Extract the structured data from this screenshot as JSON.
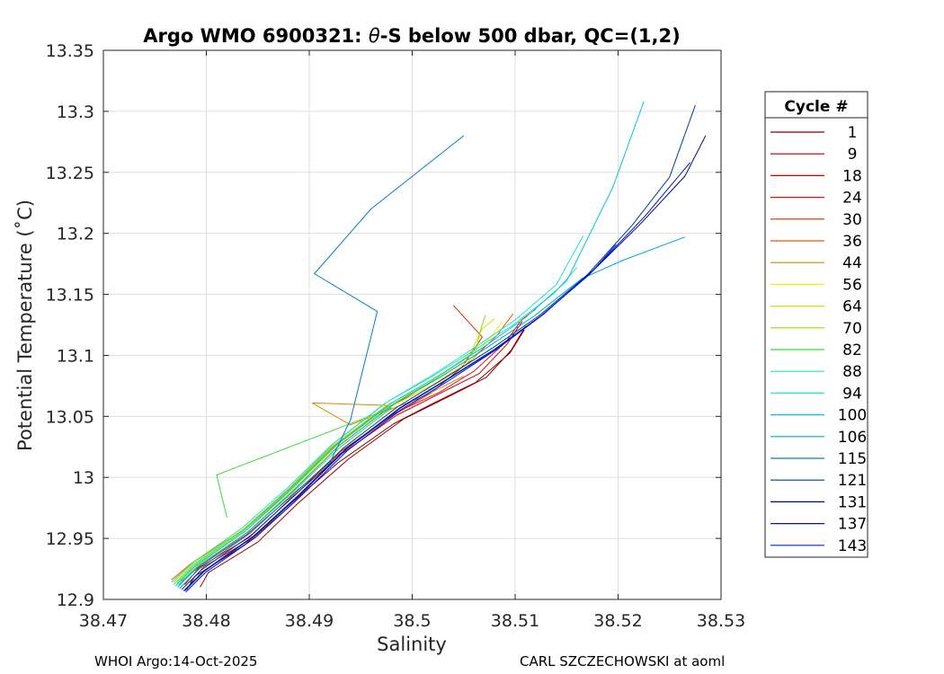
{
  "chart_data": {
    "type": "line",
    "title": "Argo WMO 6900321: θ-S below 500 dbar,  QC=(1,2)",
    "title_prefix": "Argo WMO 6900321: ",
    "title_theta": "θ",
    "title_suffix": "-S below 500 dbar,  QC=(1,2)",
    "xlabel": "Salinity",
    "ylabel": "Potential Temperature (˚C)",
    "xlim": [
      38.47,
      38.53
    ],
    "ylim": [
      12.9,
      13.35
    ],
    "xticks": [
      "38.47",
      "38.48",
      "38.49",
      "38.5",
      "38.51",
      "38.52",
      "38.53"
    ],
    "yticks": [
      "12.9",
      "12.95",
      "13",
      "13.05",
      "13.1",
      "13.15",
      "13.2",
      "13.25",
      "13.3",
      "13.35"
    ],
    "grid": true,
    "legend": {
      "title": "Cycle #",
      "placement": "right",
      "entries": [
        "1",
        "9",
        "18",
        "24",
        "30",
        "36",
        "44",
        "56",
        "64",
        "70",
        "82",
        "88",
        "94",
        "100",
        "106",
        "115",
        "121",
        "131",
        "137",
        "143"
      ]
    },
    "colors": [
      "#800000",
      "#9a0000",
      "#cc0000",
      "#d81818",
      "#e02a00",
      "#ee5500",
      "#d08c00",
      "#ffee00",
      "#c8e800",
      "#8ee000",
      "#3ed83e",
      "#2ee6a0",
      "#22e0d6",
      "#00c4f0",
      "#00a8cc",
      "#0080c0",
      "#003c96",
      "#000c80",
      "#0010d0",
      "#0028c8"
    ],
    "series": [
      {
        "name": "1",
        "x": [
          38.4781,
          38.4789,
          38.4838,
          38.4877,
          38.4928,
          38.4982,
          38.5021,
          38.5062,
          38.5095,
          38.5109
        ],
        "y": [
          12.908,
          12.919,
          12.945,
          12.975,
          13.012,
          13.044,
          13.061,
          13.078,
          13.102,
          13.121
        ]
      },
      {
        "name": "9",
        "x": [
          38.4794,
          38.4802,
          38.485,
          38.4888,
          38.4938,
          38.4992,
          38.5035,
          38.5072,
          38.5096,
          38.511
        ],
        "y": [
          12.91,
          12.922,
          12.947,
          12.978,
          13.015,
          13.048,
          13.066,
          13.082,
          13.104,
          13.124
        ]
      },
      {
        "name": "18",
        "x": [
          38.4779,
          38.4793,
          38.4842,
          38.4881,
          38.4931,
          38.4985,
          38.5025,
          38.5065,
          38.5092,
          38.5107
        ],
        "y": [
          12.912,
          12.926,
          12.951,
          12.982,
          13.019,
          13.051,
          13.068,
          13.085,
          13.109,
          13.128
        ]
      },
      {
        "name": "24",
        "x": [
          38.4776,
          38.4795,
          38.4839,
          38.4882,
          38.493,
          38.4984,
          38.5027,
          38.506,
          38.5091,
          38.5106,
          38.512
        ],
        "y": [
          12.915,
          12.928,
          12.953,
          12.984,
          13.021,
          13.053,
          13.07,
          13.087,
          13.111,
          13.129,
          13.138
        ]
      },
      {
        "name": "30",
        "x": [
          38.4784,
          38.4798,
          38.4845,
          38.4886,
          38.4926,
          38.4976,
          38.5018,
          38.5048,
          38.5068,
          38.504
        ],
        "y": [
          12.914,
          12.927,
          12.95,
          12.98,
          13.017,
          13.048,
          13.069,
          13.09,
          13.115,
          13.141
        ]
      },
      {
        "name": "36",
        "x": [
          38.4766,
          38.4786,
          38.4835,
          38.4878,
          38.4922,
          38.4972,
          38.5014,
          38.5052,
          38.5082,
          38.5098
        ],
        "y": [
          12.916,
          12.93,
          12.956,
          12.987,
          13.024,
          13.056,
          13.073,
          13.092,
          13.116,
          13.134
        ]
      },
      {
        "name": "44",
        "x": [
          38.477,
          38.4788,
          38.4837,
          38.4879,
          38.4924,
          38.4976,
          38.4903,
          38.494,
          38.501,
          38.505
        ],
        "y": [
          12.917,
          12.931,
          12.958,
          12.989,
          13.026,
          13.059,
          13.061,
          13.043,
          13.066,
          13.083
        ]
      },
      {
        "name": "56",
        "x": [
          38.4772,
          38.479,
          38.4838,
          38.488,
          38.4925,
          38.4978,
          38.502,
          38.5058,
          38.5075,
          38.5088
        ],
        "y": [
          12.915,
          12.929,
          12.956,
          12.987,
          13.024,
          13.057,
          13.076,
          13.097,
          13.114,
          13.128
        ]
      },
      {
        "name": "64",
        "x": [
          38.4768,
          38.4787,
          38.4835,
          38.4878,
          38.4923,
          38.4975,
          38.5018,
          38.5055,
          38.5068,
          38.508
        ],
        "y": [
          12.914,
          12.929,
          12.957,
          12.989,
          13.026,
          13.059,
          13.078,
          13.099,
          13.122,
          13.13
        ]
      },
      {
        "name": "70",
        "x": [
          38.4771,
          38.4789,
          38.4836,
          38.4879,
          38.4924,
          38.4977,
          38.5021,
          38.5062,
          38.5066,
          38.5071
        ],
        "y": [
          12.913,
          12.928,
          12.956,
          12.988,
          13.025,
          13.058,
          13.08,
          13.104,
          13.12,
          13.133
        ]
      },
      {
        "name": "82",
        "x": [
          38.4773,
          38.4791,
          38.484,
          38.4883,
          38.4929,
          38.498,
          38.481,
          38.482
        ],
        "y": [
          12.912,
          12.927,
          12.955,
          12.987,
          13.024,
          13.057,
          13.002,
          12.967
        ]
      },
      {
        "name": "88",
        "x": [
          38.4766,
          38.4785,
          38.4834,
          38.4877,
          38.4922,
          38.4974,
          38.5018,
          38.5058,
          38.5098,
          38.5138,
          38.516
        ],
        "y": [
          12.914,
          12.929,
          12.958,
          12.99,
          13.027,
          13.061,
          13.082,
          13.103,
          13.125,
          13.151,
          13.172
        ]
      },
      {
        "name": "94",
        "x": [
          38.4768,
          38.4787,
          38.4836,
          38.4879,
          38.4924,
          38.4976,
          38.502,
          38.506,
          38.51,
          38.514,
          38.5166
        ],
        "y": [
          12.912,
          12.928,
          12.957,
          12.99,
          13.028,
          13.062,
          13.084,
          13.106,
          13.129,
          13.158,
          13.198
        ]
      },
      {
        "name": "100",
        "x": [
          38.477,
          38.4789,
          38.4838,
          38.4881,
          38.4927,
          38.498,
          38.5025,
          38.5068,
          38.511,
          38.515,
          38.5195,
          38.5225
        ],
        "y": [
          12.911,
          12.927,
          12.956,
          12.989,
          13.027,
          13.061,
          13.083,
          13.106,
          13.131,
          13.161,
          13.238,
          13.308
        ]
      },
      {
        "name": "106",
        "x": [
          38.4772,
          38.4791,
          38.484,
          38.4883,
          38.4929,
          38.4982,
          38.5027,
          38.5072,
          38.5118,
          38.5165,
          38.5205,
          38.5265
        ],
        "y": [
          12.91,
          12.926,
          12.955,
          12.988,
          13.026,
          13.06,
          13.082,
          13.106,
          13.132,
          13.163,
          13.178,
          13.197
        ]
      },
      {
        "name": "115",
        "x": [
          38.4774,
          38.4793,
          38.4842,
          38.4885,
          38.492,
          38.494,
          38.4966,
          38.4905,
          38.496,
          38.505
        ],
        "y": [
          12.909,
          12.925,
          12.954,
          12.987,
          13.012,
          13.047,
          13.136,
          13.167,
          13.22,
          13.28
        ]
      },
      {
        "name": "121",
        "x": [
          38.4776,
          38.4795,
          38.4844,
          38.4887,
          38.4933,
          38.4986,
          38.5031,
          38.5078,
          38.5124,
          38.517,
          38.5214,
          38.525,
          38.5275
        ],
        "y": [
          12.908,
          12.924,
          12.953,
          12.986,
          13.024,
          13.058,
          13.081,
          13.106,
          13.133,
          13.166,
          13.207,
          13.246,
          13.305
        ]
      },
      {
        "name": "131",
        "x": [
          38.4778,
          38.4797,
          38.4846,
          38.4889,
          38.4935,
          38.4988,
          38.5033,
          38.508,
          38.5126,
          38.5174,
          38.5222,
          38.5265,
          38.5285
        ],
        "y": [
          12.907,
          12.923,
          12.952,
          12.985,
          13.023,
          13.057,
          13.08,
          13.105,
          13.133,
          13.168,
          13.208,
          13.247,
          13.28
        ]
      },
      {
        "name": "137",
        "x": [
          38.478,
          38.4799,
          38.4848,
          38.4891,
          38.4937,
          38.499,
          38.5035,
          38.5082,
          38.5128,
          38.5176,
          38.5226,
          38.527
        ],
        "y": [
          12.906,
          12.922,
          12.951,
          12.984,
          13.022,
          13.056,
          13.079,
          13.105,
          13.134,
          13.17,
          13.214,
          13.258
        ]
      },
      {
        "name": "143",
        "x": [
          38.4779,
          38.4798,
          38.4847,
          38.489,
          38.4936,
          38.4989,
          38.5034,
          38.5081,
          38.5126,
          38.5172,
          38.5198
        ],
        "y": [
          12.907,
          12.923,
          12.952,
          12.985,
          13.023,
          13.057,
          13.08,
          13.105,
          13.133,
          13.166,
          13.191
        ]
      }
    ]
  },
  "footer": {
    "left": "WHOI Argo:14-Oct-2025",
    "right": "CARL SZCZECHOWSKI at aoml"
  }
}
